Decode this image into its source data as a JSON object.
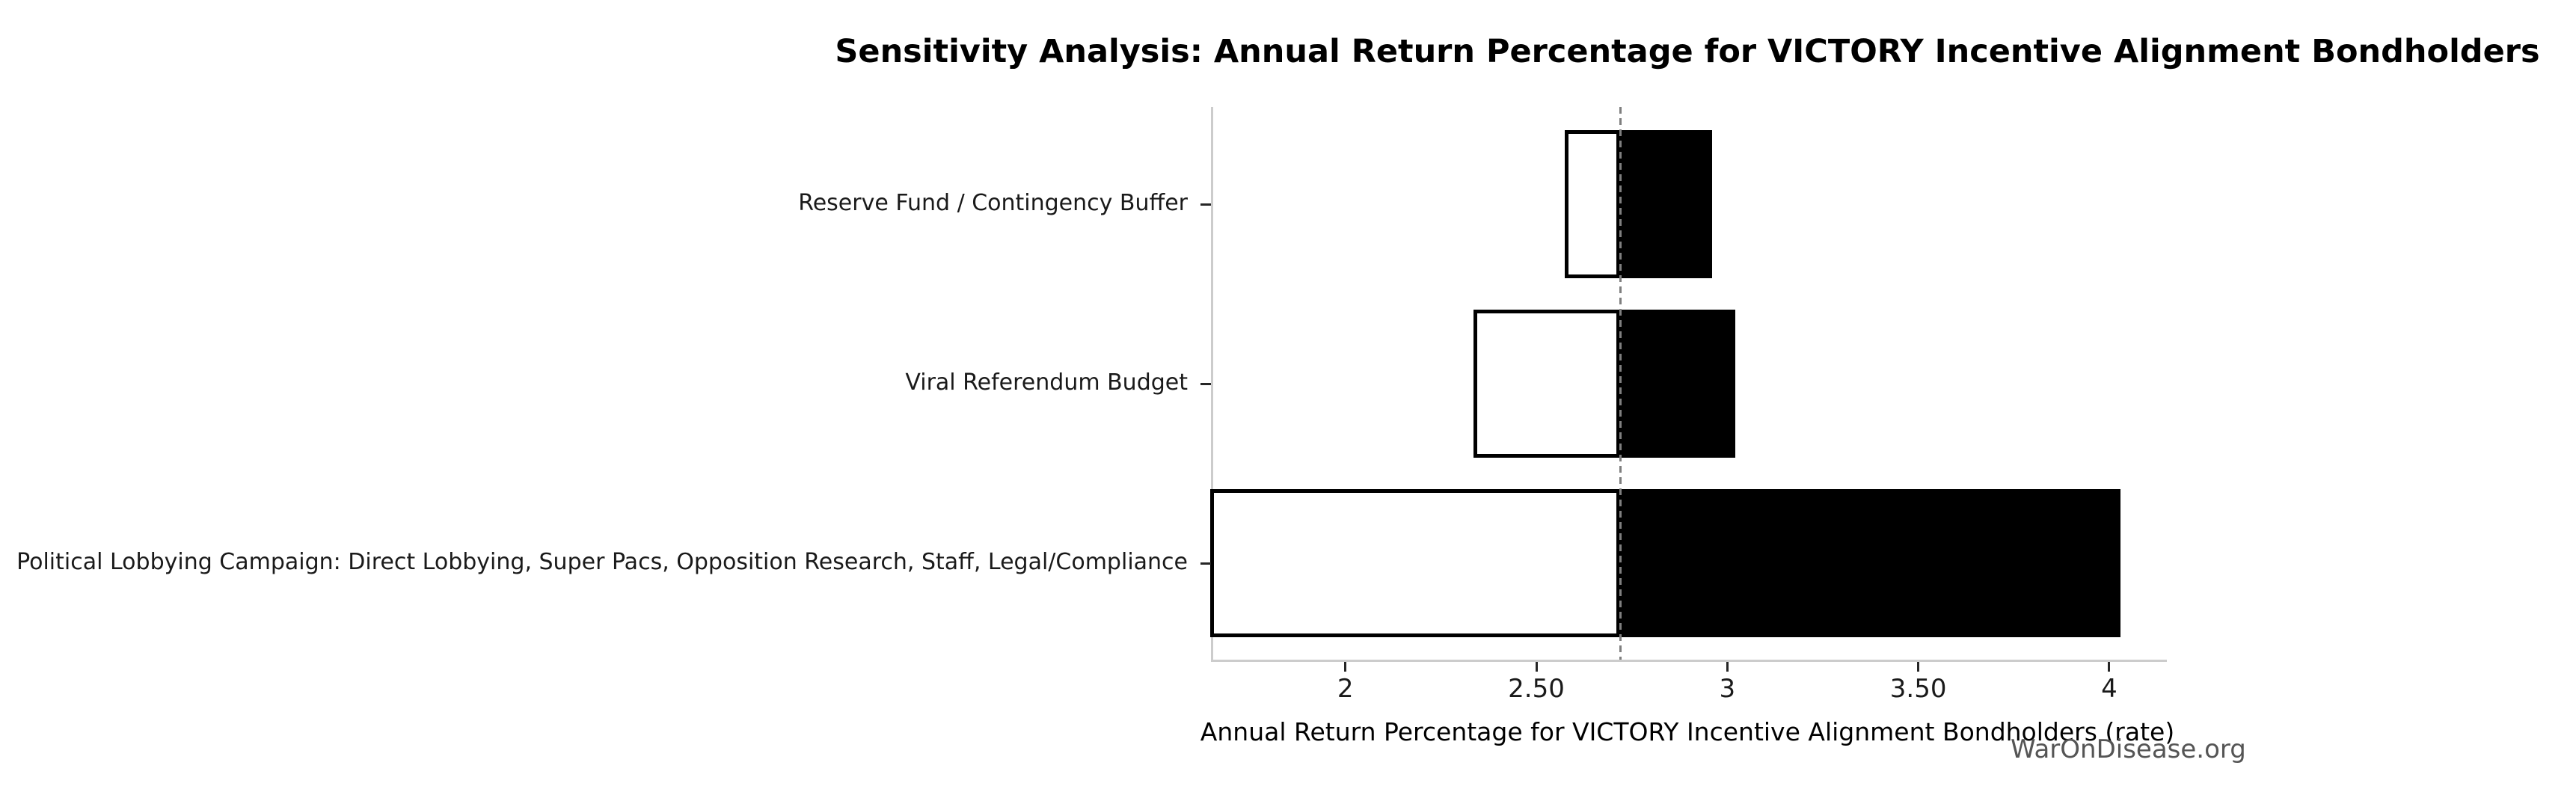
{
  "watermark": "WarOnDisease.org",
  "chart_data": {
    "type": "bar",
    "subtype": "tornado-sensitivity",
    "orientation": "horizontal",
    "title": "Sensitivity Analysis: Annual Return Percentage for VICTORY Incentive Alignment Bondholders",
    "xlabel": "Annual Return Percentage for VICTORY Incentive Alignment Bondholders (rate)",
    "ylabel": "",
    "categories": [
      "Reserve Fund / Contingency Buffer",
      "Viral Referendum Budget",
      "Political Lobbying Campaign: Direct Lobbying, Super Pacs, Opposition Research, Staff, Legal/Compliance"
    ],
    "base_value": 2.72,
    "series": [
      {
        "name": "low",
        "values": [
          2.58,
          2.34,
          1.65
        ]
      },
      {
        "name": "high",
        "values": [
          2.96,
          3.02,
          4.03
        ]
      }
    ],
    "xlim": [
      1.648,
      4.145
    ],
    "xticks": [
      {
        "value": 2,
        "label": "2"
      },
      {
        "value": 2.5,
        "label": "2.50"
      },
      {
        "value": 3,
        "label": "3"
      },
      {
        "value": 3.5,
        "label": "3.50"
      },
      {
        "value": 4,
        "label": "4"
      }
    ],
    "grid": false,
    "legend": "none",
    "colors": {
      "bar_low_fill": "#ffffff",
      "bar_high_fill": "#000000",
      "bar_edge": "#000000",
      "base_line": "#7f7f7f",
      "spine": "#cccccc",
      "tick": "#262626",
      "watermark": "#555555"
    }
  }
}
